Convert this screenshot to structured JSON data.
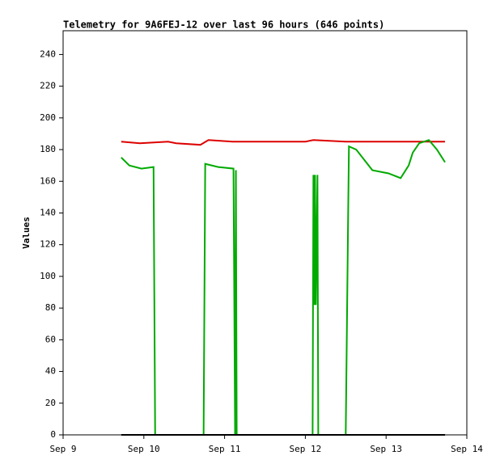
{
  "chart_data": {
    "type": "line",
    "title": "Telemetry for 9A6FEJ-12 over last 96 hours (646 points)",
    "y_label": "Values",
    "xlim": [
      0,
      5
    ],
    "xticks": [
      {
        "value": 0,
        "label": "Sep 9"
      },
      {
        "value": 1,
        "label": "Sep 10"
      },
      {
        "value": 2,
        "label": "Sep 11"
      },
      {
        "value": 3,
        "label": "Sep 12"
      },
      {
        "value": 4,
        "label": "Sep 13"
      },
      {
        "value": 5,
        "label": "Sep 14"
      }
    ],
    "ylim": [
      0,
      255
    ],
    "yticks": [
      0,
      20,
      40,
      60,
      80,
      100,
      120,
      140,
      160,
      180,
      200,
      220,
      240
    ],
    "series": [
      {
        "color": "#dd0000",
        "x": [
          0.72,
          0.95,
          1.3,
          1.4,
          1.7,
          1.8,
          2.1,
          2.5,
          3.0,
          3.1,
          3.5,
          4.0,
          4.5,
          4.73
        ],
        "values": [
          185,
          184,
          185,
          184,
          183,
          186,
          185,
          185,
          185,
          186,
          185,
          185,
          185,
          185
        ]
      },
      {
        "color": "#00aa00",
        "x": [
          0.72,
          0.82,
          0.97,
          1.12,
          1.13,
          1.14,
          1.74,
          1.75,
          1.76,
          1.92,
          2.11,
          2.12,
          2.13,
          2.14,
          2.15,
          3.09,
          3.1,
          3.11,
          3.12,
          3.13,
          3.15,
          3.16,
          3.5,
          3.51,
          3.53,
          3.54,
          3.63,
          3.83,
          4.03,
          4.18,
          4.28,
          4.33,
          4.41,
          4.53,
          4.63,
          4.73
        ],
        "values": [
          175,
          170,
          168,
          169,
          85,
          0,
          0,
          85,
          171,
          169,
          168,
          85,
          0,
          167,
          0,
          0,
          164,
          82,
          164,
          82,
          164,
          0,
          0,
          45,
          138,
          182,
          180,
          167,
          165,
          162,
          170,
          178,
          184,
          186,
          180,
          172
        ]
      },
      {
        "color": "#000000",
        "x": [
          0.72,
          4.73
        ],
        "values": [
          0,
          0
        ]
      }
    ]
  }
}
